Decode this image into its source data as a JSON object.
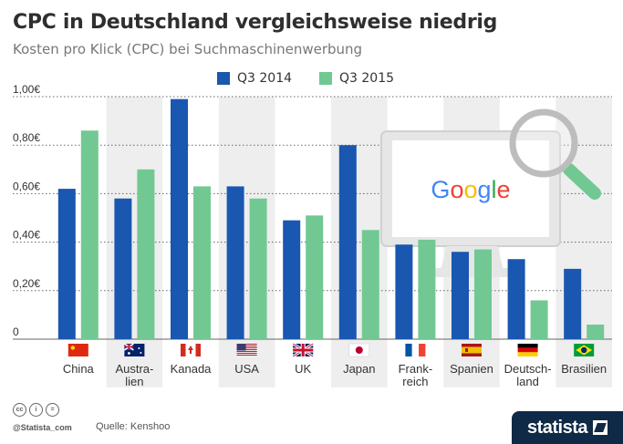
{
  "header": {
    "title": "CPC in Deutschland vergleichsweise niedrig",
    "subtitle": "Kosten pro Klick (CPC) bei Suchmaschinenwerbung"
  },
  "legend": {
    "items": [
      {
        "label": "Q3 2014",
        "color": "#1957b0"
      },
      {
        "label": "Q3 2015",
        "color": "#72c893"
      }
    ]
  },
  "colors": {
    "series_2014": "#1957b0",
    "series_2015": "#72c893",
    "band": "#eeeeee",
    "grid": "#666666",
    "axis_text": "#333333"
  },
  "chart_data": {
    "type": "bar",
    "categories": [
      {
        "label": "China",
        "flag": "cn-flag-icon"
      },
      {
        "label": "Austra-\nlien",
        "flag": "au-flag-icon"
      },
      {
        "label": "Kanada",
        "flag": "ca-flag-icon"
      },
      {
        "label": "USA",
        "flag": "us-flag-icon"
      },
      {
        "label": "UK",
        "flag": "uk-flag-icon"
      },
      {
        "label": "Japan",
        "flag": "jp-flag-icon"
      },
      {
        "label": "Frank-\nreich",
        "flag": "fr-flag-icon"
      },
      {
        "label": "Spanien",
        "flag": "es-flag-icon"
      },
      {
        "label": "Deutsch-\nland",
        "flag": "de-flag-icon"
      },
      {
        "label": "Brasilien",
        "flag": "br-flag-icon"
      }
    ],
    "series": [
      {
        "name": "Q3 2014",
        "values": [
          0.62,
          0.58,
          0.99,
          0.63,
          0.49,
          0.8,
          0.39,
          0.36,
          0.33,
          0.29
        ]
      },
      {
        "name": "Q3 2015",
        "values": [
          0.86,
          0.7,
          0.63,
          0.58,
          0.51,
          0.45,
          0.41,
          0.37,
          0.16,
          0.06
        ]
      }
    ],
    "yticks": [
      "0",
      "0,20€",
      "0,40€",
      "0,60€",
      "0,80€",
      "1,00€"
    ],
    "ylim": [
      0,
      1.0
    ],
    "grid": true,
    "legend_position": "top-center",
    "annotation": "Google"
  },
  "footer": {
    "source": "Quelle: Kenshoo",
    "handle": "@Statista_com",
    "license": [
      "cc",
      "i",
      "="
    ],
    "brand": "statista"
  }
}
